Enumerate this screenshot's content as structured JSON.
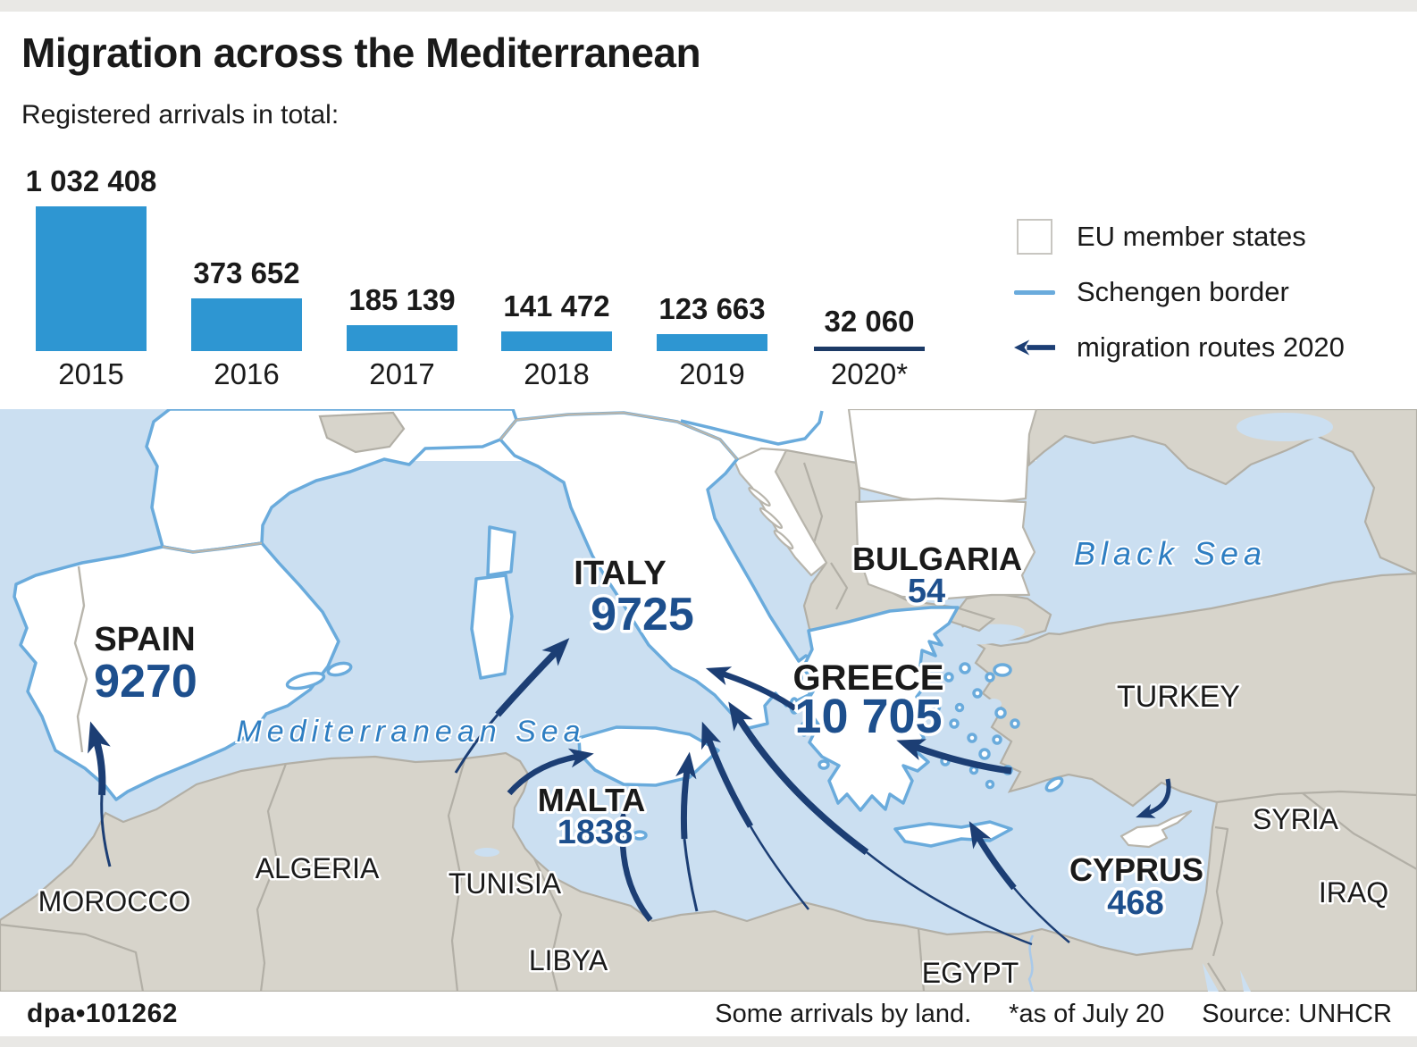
{
  "title": "Migration across the Mediterranean",
  "subtitle": "Registered arrivals in total:",
  "legend": {
    "items": [
      {
        "label": "EU member states"
      },
      {
        "label": "Schengen border"
      },
      {
        "label": "migration routes 2020"
      }
    ]
  },
  "chart_data": {
    "type": "bar",
    "title": "Registered arrivals in total",
    "categories": [
      "2015",
      "2016",
      "2017",
      "2018",
      "2019",
      "2020*"
    ],
    "values": [
      1032408,
      373652,
      185139,
      141472,
      123663,
      32060
    ],
    "value_labels": [
      "1 032 408",
      "373 652",
      "185 139",
      "141 472",
      "123 663",
      "32 060"
    ],
    "xlabel": "",
    "ylabel": "",
    "ylim": [
      0,
      1032408
    ],
    "bar_colors": [
      "#2e96d2",
      "#2e96d2",
      "#2e96d2",
      "#2e96d2",
      "#2e96d2",
      "#1c3a66"
    ]
  },
  "map": {
    "arrivals": [
      {
        "country": "SPAIN",
        "value": "9270"
      },
      {
        "country": "ITALY",
        "value": "9725"
      },
      {
        "country": "MALTA",
        "value": "1838"
      },
      {
        "country": "GREECE",
        "value": "10 705"
      },
      {
        "country": "BULGARIA",
        "value": "54"
      },
      {
        "country": "CYPRUS",
        "value": "468"
      }
    ],
    "other_countries": [
      "MOROCCO",
      "ALGERIA",
      "TUNISIA",
      "LIBYA",
      "EGYPT",
      "TURKEY",
      "SYRIA",
      "IRAQ"
    ],
    "seas": [
      "Mediterranean Sea",
      "Black Sea"
    ]
  },
  "footer": {
    "credit": "dpa•101262",
    "note": "Some arrivals by land.",
    "asof": "*as of July 20",
    "source": "Source: UNHCR"
  },
  "colors": {
    "sea": "#cbdff1",
    "land": "#d7d4cb",
    "land-border": "#b2afa6",
    "eu-fill": "#ffffff",
    "schengen": "#6aabdc",
    "inner-border": "#b8b5ac",
    "route": "#1c3e74",
    "bar": "#2e96d2",
    "bar-2020": "#1c3a66",
    "number": "#1d4f8d",
    "sea-label": "#2e7ec2",
    "text": "#1a1a1a",
    "strip": "#e9e8e5",
    "legend-box-border": "#c8c6c1"
  }
}
